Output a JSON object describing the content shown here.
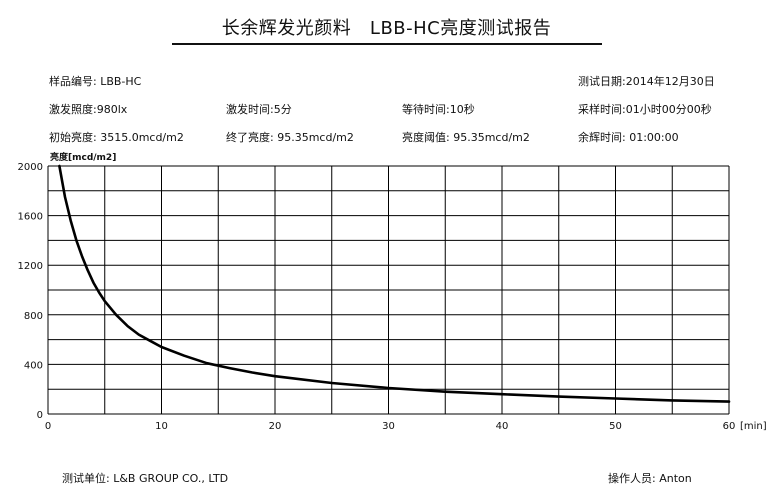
{
  "report": {
    "title": "长余辉发光颜料   LBB-HC亮度测试报告"
  },
  "meta": {
    "sample": "样品编号:   LBB-HC",
    "test_date": "测试日期:2014年12月30日",
    "excite_lux": "激发照度:980lx",
    "excite_time": "激发时间:5分",
    "wait_time": "等待时间:10秒",
    "sample_time": "采样时间:01小时00分00秒",
    "init_lum": "初始亮度:   3515.0mcd/m2",
    "final_lum": "终了亮度:   95.35mcd/m2",
    "threshold": "亮度阈值:   95.35mcd/m2",
    "afterglow": "余辉时间:   01:00:00"
  },
  "footer": {
    "unit": "测试单位:  L&B GROUP CO., LTD",
    "operator": "操作人员:   Anton"
  },
  "chart_data": {
    "type": "line",
    "ylabel": "亮度[mcd/m2]",
    "xlabel": "[min]",
    "xlim": [
      0,
      60
    ],
    "ylim": [
      0,
      2000
    ],
    "x_ticks": [
      "0",
      "10",
      "20",
      "30",
      "40",
      "50",
      "60"
    ],
    "y_ticks": [
      "0",
      "400",
      "800",
      "1200",
      "1600",
      "2000"
    ],
    "grid": true,
    "line_color": "#000000",
    "series": [
      {
        "x": [
          1,
          1.5,
          2,
          2.5,
          3,
          3.5,
          4,
          4.5,
          5,
          6,
          7,
          8,
          9,
          10,
          12,
          14,
          16,
          18,
          20,
          25,
          30,
          35,
          40,
          45,
          50,
          55,
          60
        ],
        "values": [
          2000,
          1750,
          1560,
          1400,
          1270,
          1160,
          1060,
          980,
          910,
          800,
          710,
          640,
          590,
          540,
          470,
          410,
          370,
          335,
          305,
          250,
          210,
          180,
          160,
          140,
          125,
          110,
          100
        ]
      }
    ]
  }
}
